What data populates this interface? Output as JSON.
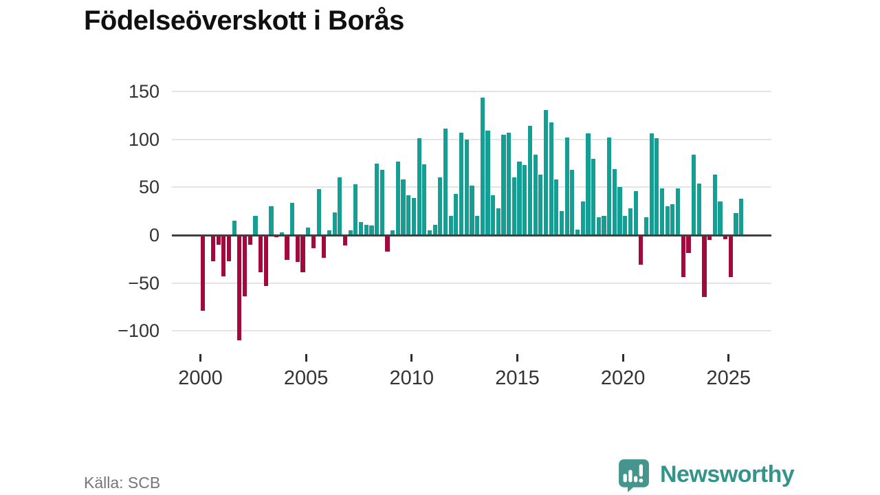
{
  "title": "Födelseöverskott i Borås",
  "source": {
    "label": "Källa: SCB"
  },
  "branding": {
    "name": "Newsworthy",
    "logo_icon": "bar-chart-speech-bubble-icon",
    "color": "#33948b"
  },
  "colors": {
    "positive_bar": "#149e94",
    "negative_bar": "#a4093d",
    "grid": "#e4e4e4",
    "zero_line": "#404040",
    "axis_text": "#333333",
    "title_text": "#101010",
    "source_text": "#767676",
    "background": "#ffffff"
  },
  "chart_data": {
    "type": "bar",
    "title": "Födelseöverskott i Borås",
    "frequency": "quarterly",
    "start_quarter": "2000Q1",
    "end_quarter": "2025Q3",
    "grid": "horizontal",
    "legend": "none",
    "ylim": [
      -120,
      158
    ],
    "y_tick_values": [
      150,
      100,
      50,
      0,
      -50,
      -100
    ],
    "y_tick_labels": [
      "150",
      "100",
      "50",
      "0",
      "−50",
      "−100"
    ],
    "x_tick_years": [
      2000,
      2005,
      2010,
      2015,
      2020,
      2025
    ],
    "x_tick_labels": [
      "2000",
      "2005",
      "2010",
      "2015",
      "2020",
      "2025"
    ],
    "series": [
      {
        "name": "Födelseöverskott",
        "values": [
          -79,
          0,
          -27,
          -10,
          -43,
          -27,
          15,
          -110,
          -64,
          -10,
          20,
          -39,
          -53,
          30,
          -2,
          3,
          -26,
          34,
          -28,
          -39,
          8,
          -14,
          48,
          -24,
          5,
          24,
          60,
          -11,
          5,
          53,
          14,
          11,
          10,
          75,
          68,
          -17,
          5,
          77,
          58,
          42,
          39,
          101,
          74,
          5,
          11,
          60,
          111,
          20,
          43,
          107,
          100,
          52,
          20,
          144,
          109,
          42,
          28,
          105,
          107,
          60,
          77,
          73,
          114,
          84,
          63,
          131,
          118,
          58,
          25,
          102,
          68,
          6,
          35,
          106,
          80,
          19,
          20,
          102,
          69,
          50,
          20,
          28,
          46,
          -31,
          19,
          106,
          101,
          49,
          30,
          32,
          49,
          -44,
          -19,
          84,
          54,
          -65,
          -5,
          63,
          35,
          -4,
          -44,
          23,
          38
        ]
      }
    ]
  }
}
